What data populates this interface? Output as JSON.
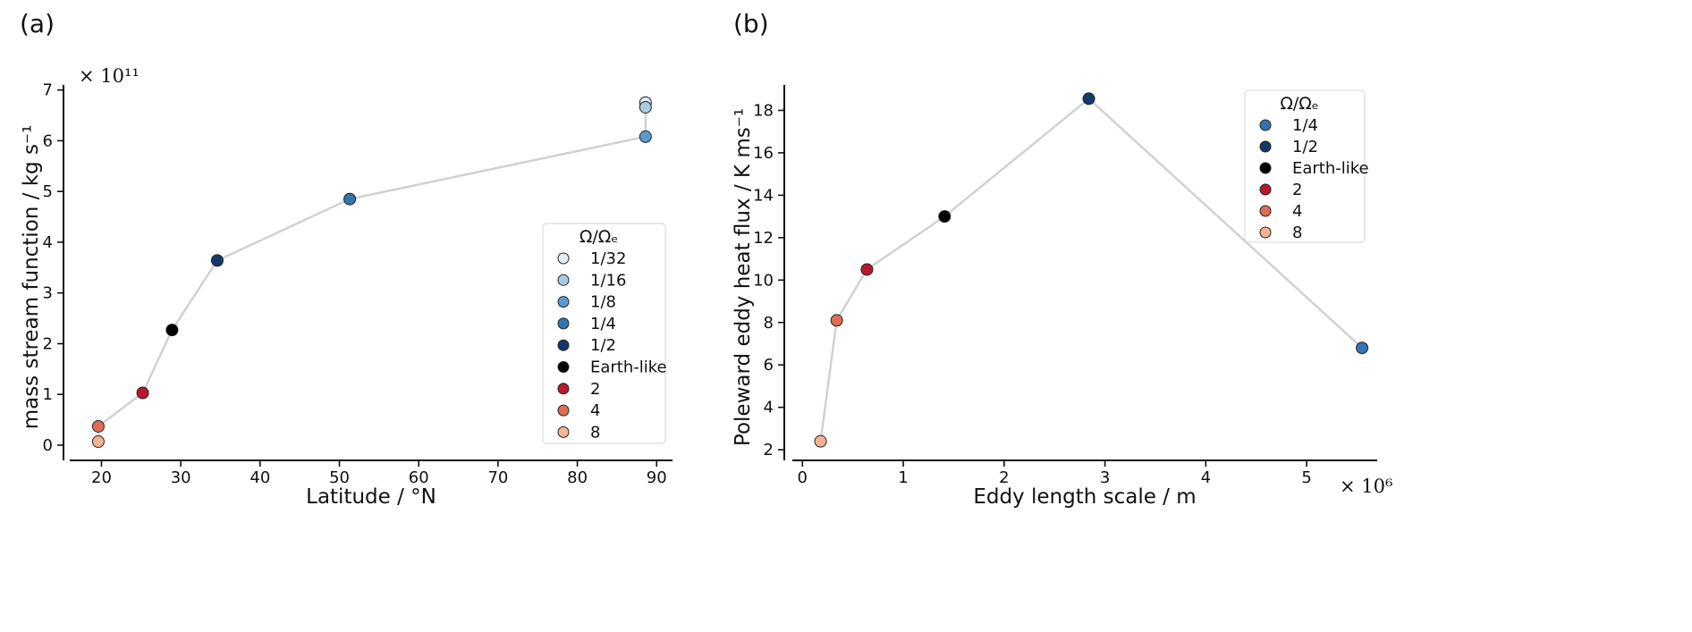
{
  "panels": {
    "a_label": "(a)",
    "b_label": "(b)"
  },
  "chart_data": [
    {
      "type": "scatter",
      "panel": "(a)",
      "xlabel": "Latitude / °N",
      "ylabel": "mass stream function / kg s⁻¹",
      "y_multiplier": "× 10¹¹",
      "xlim": [
        16,
        92
      ],
      "ylim": [
        -0.3,
        7.1
      ],
      "xticks": [
        20,
        30,
        40,
        50,
        60,
        70,
        80,
        90
      ],
      "yticks": [
        0,
        1,
        2,
        3,
        4,
        5,
        6,
        7
      ],
      "legend_title": "Ω/Ωₑ",
      "legend_position": "lower-right",
      "connecting_line": true,
      "line_color": "#d0d0d0",
      "series": [
        {
          "name": "1/32",
          "color": "#e6eef6",
          "x": 88.6,
          "y": 6.75
        },
        {
          "name": "1/16",
          "color": "#a8cbe4",
          "x": 88.6,
          "y": 6.66
        },
        {
          "name": "1/8",
          "color": "#5a9bcb",
          "x": 88.6,
          "y": 6.08
        },
        {
          "name": "1/4",
          "color": "#3474b0",
          "x": 51.3,
          "y": 4.85
        },
        {
          "name": "1/2",
          "color": "#13386a",
          "x": 34.6,
          "y": 3.64
        },
        {
          "name": "Earth-like",
          "color": "#000000",
          "x": 28.9,
          "y": 2.27
        },
        {
          "name": "2",
          "color": "#b8192b",
          "x": 25.2,
          "y": 1.03
        },
        {
          "name": "4",
          "color": "#dd6d55",
          "x": 19.6,
          "y": 0.37
        },
        {
          "name": "8",
          "color": "#f4b390",
          "x": 19.6,
          "y": 0.07
        }
      ]
    },
    {
      "type": "scatter",
      "panel": "(b)",
      "xlabel": "Eddy length scale / m",
      "ylabel": "Poleward eddy heat flux /  K ms⁻¹",
      "x_multiplier": "× 10⁶",
      "xlim": [
        -0.1,
        5.7
      ],
      "ylim": [
        1.5,
        19.2
      ],
      "xticks": [
        0,
        1,
        2,
        3,
        4,
        5
      ],
      "yticks": [
        2,
        4,
        6,
        8,
        10,
        12,
        14,
        16,
        18
      ],
      "legend_title": "Ω/Ωₑ",
      "legend_position": "upper-right",
      "connecting_line": true,
      "line_color": "#d0d0d0",
      "series": [
        {
          "name": "1/4",
          "color": "#3474b0",
          "x": 5.55,
          "y": 6.8
        },
        {
          "name": "1/2",
          "color": "#13386a",
          "x": 2.84,
          "y": 18.55
        },
        {
          "name": "Earth-like",
          "color": "#000000",
          "x": 1.41,
          "y": 13.0
        },
        {
          "name": "2",
          "color": "#b8192b",
          "x": 0.64,
          "y": 10.5
        },
        {
          "name": "4",
          "color": "#dd6d55",
          "x": 0.34,
          "y": 8.1
        },
        {
          "name": "8",
          "color": "#f4b390",
          "x": 0.18,
          "y": 2.4
        }
      ]
    }
  ]
}
